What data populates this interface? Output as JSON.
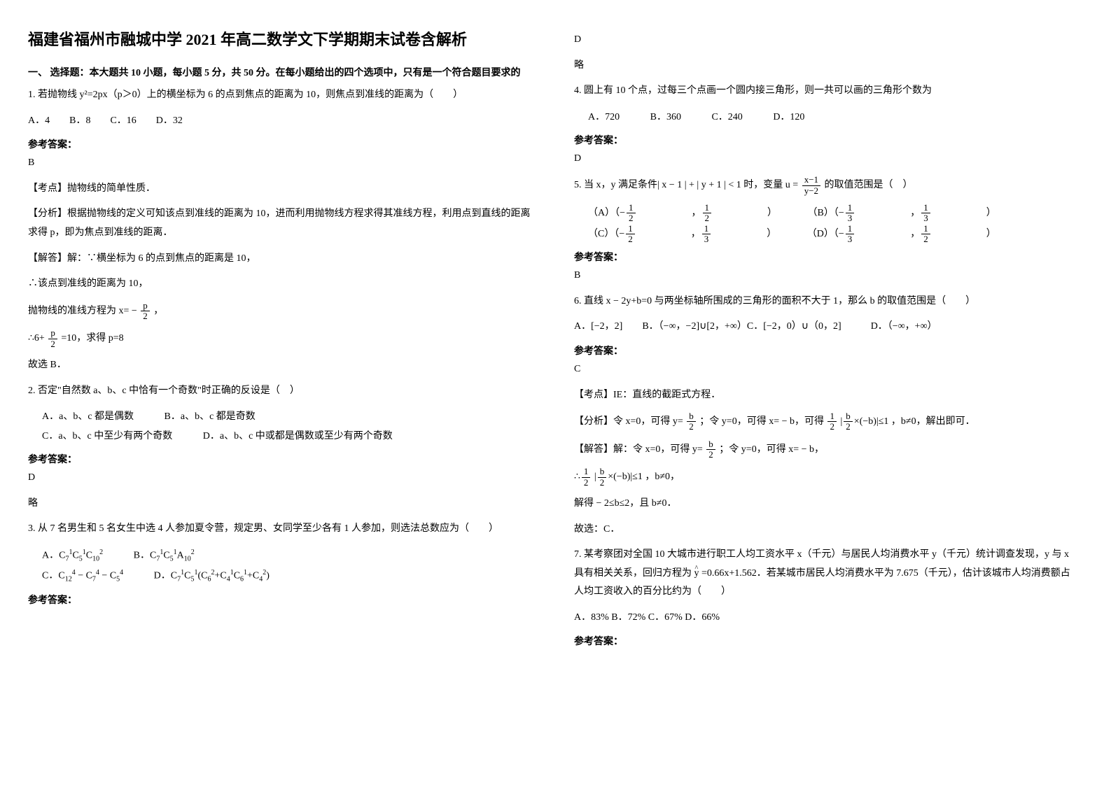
{
  "title": "福建省福州市融城中学 2021 年高二数学文下学期期末试卷含解析",
  "section1": "一、 选择题：本大题共 10 小题，每小题 5 分，共 50 分。在每小题给出的四个选项中，只有是一个符合题目要求的",
  "q1": {
    "text": "1. 若抛物线 y²=2px（p＞0）上的横坐标为 6 的点到焦点的距离为 10，则焦点到准线的距离为（　　）",
    "opts": "A．4　　B．8　　C．16　　D．32",
    "ansLabel": "参考答案：",
    "ans": "B",
    "kp": "【考点】抛物线的简单性质．",
    "fx": "【分析】根据抛物线的定义可知该点到准线的距离为 10，进而利用抛物线方程求得其准线方程，利用点到直线的距离求得 p，即为焦点到准线的距离．",
    "jd1": "【解答】解：∵横坐标为 6 的点到焦点的距离是 10，",
    "jd2": "∴该点到准线的距离为 10，",
    "jd3a": "抛物线的准线方程为 x= −",
    "jd3b": "，",
    "jd4a": "∴6+",
    "jd4b": " =10，求得 p=8",
    "jd5": "故选 B．"
  },
  "q2": {
    "text": "2. 否定\"自然数 a、b、c 中恰有一个奇数\"时正确的反设是（　）",
    "oA": "A．a、b、c 都是偶数",
    "oB": "B．a、b、c 都是奇数",
    "oC": "C．a、b、c 中至少有两个奇数",
    "oD": "D．a、b、c 中或都是偶数或至少有两个奇数",
    "ansLabel": "参考答案：",
    "ans": "D",
    "lue": "略"
  },
  "q3": {
    "text": "3. 从 7 名男生和 5 名女生中选 4 人参加夏令营，规定男、女同学至少各有 1 人参加，则选法总数应为（　　）",
    "ansLabel": "参考答案：",
    "ans": "D",
    "lue": "略"
  },
  "q4": {
    "text": "4. 圆上有 10 个点，过每三个点画一个圆内接三角形，则一共可以画的三角形个数为",
    "oA": "A．720",
    "oB": "B．360",
    "oC": "C．240",
    "oD": "D．120",
    "ansLabel": "参考答案：",
    "ans": "D"
  },
  "q5": {
    "text1": "5. 当 x，y 满足条件| x − 1 | + | y + 1 | < 1 时，变量 u = ",
    "text2": " 的取值范围是（　）",
    "ansLabel": "参考答案：",
    "ans": "B"
  },
  "q6": {
    "text": "6. 直线 x − 2y+b=0 与两坐标轴所围成的三角形的面积不大于 1，那么 b 的取值范围是（　　）",
    "opts": "A．[−2，2]　　B．（−∞，−2]∪[2，+∞）C．[−2，0）∪（0，2]　　　D．（−∞，+∞）",
    "ansLabel": "参考答案：",
    "ans": "C",
    "kp": "【考点】IE：直线的截距式方程．",
    "fx1": "【分析】令 x=0，可得 y=",
    "fx2": "；令 y=0，可得 x= − b，可得",
    "fx3": "，b≠0，解出即可．",
    "jd1": "【解答】解：令 x=0，可得 y=",
    "jd2": "；令 y=0，可得 x= − b，",
    "jd3": "，b≠0，",
    "jd4": "解得 − 2≤b≤2，且 b≠0．",
    "jd5": "故选：C．"
  },
  "q7": {
    "text1": "7. 某考察团对全国 10 大城市进行职工人均工资水平 x（千元）与居民人均消费水平 y（千元）统计调查发现，y 与 x 具有相关关系，回归方程为",
    "text2": " =0.66x+1.562．若某城市居民人均消费水平为 7.675（千元），估计该城市人均消费额占人均工资收入的百分比约为（　　）",
    "opts": "A．83% B．72% C．67% D．66%",
    "ansLabel": "参考答案："
  },
  "frac": {
    "p": "p",
    "two": "2",
    "one": "1",
    "three": "3",
    "b": "b",
    "xm1": "x−1",
    "ym2": "y−2"
  }
}
